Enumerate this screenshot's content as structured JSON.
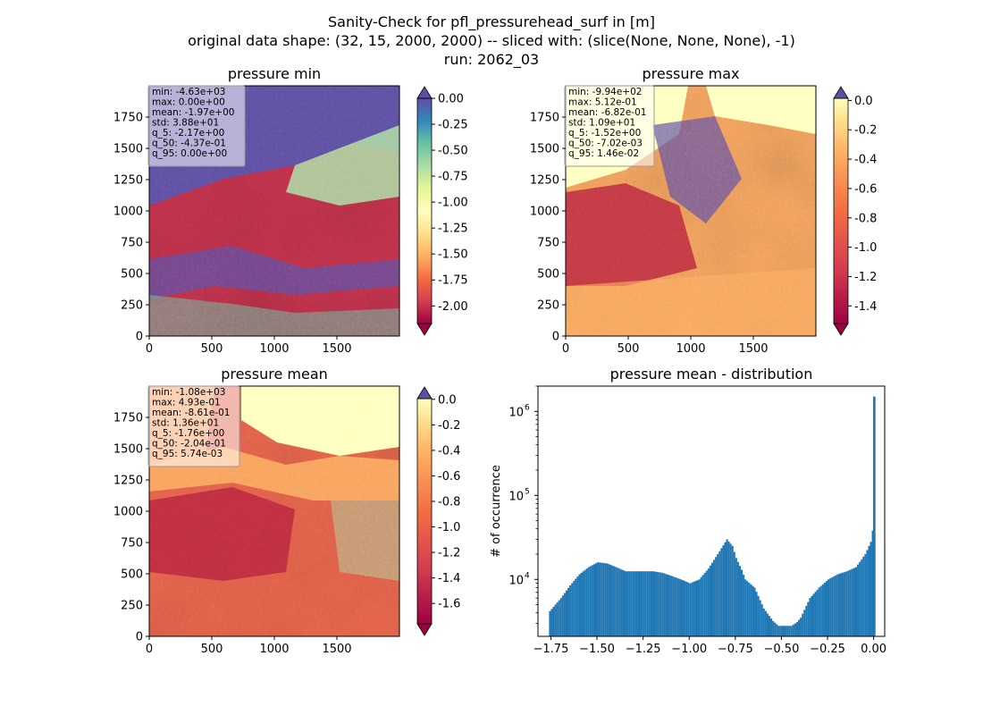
{
  "title_lines": [
    "Sanity-Check for pfl_pressurehead_surf in [m]",
    "original data shape: (32, 15, 2000, 2000) -- sliced with: (slice(None, None, None), -1)",
    "run: 2062_03"
  ],
  "chart_data": [
    {
      "type": "heatmap",
      "title": "pressure min",
      "cmap": "Spectral",
      "xlim": [
        0,
        2000
      ],
      "ylim": [
        0,
        2000
      ],
      "xticks": [
        0,
        500,
        1000,
        1500
      ],
      "yticks": [
        0,
        250,
        500,
        750,
        1000,
        1250,
        1500,
        1750
      ],
      "colorbar": {
        "range": [
          -2.17,
          0.0
        ],
        "ticks": [
          "0.00",
          "-0.25",
          "-0.50",
          "-0.75",
          "-1.00",
          "-1.25",
          "-1.50",
          "-1.75",
          "-2.00"
        ],
        "extend": "both"
      },
      "stats": [
        "min: -4.63e+03",
        "max: 0.00e+00",
        "mean: -1.97e+00",
        "std: 3.88e+01",
        "q_5: -2.17e+00",
        "q_50: -4.37e-01",
        "q_95: 0.00e+00"
      ]
    },
    {
      "type": "heatmap",
      "title": "pressure max",
      "cmap": "Spectral",
      "xlim": [
        0,
        2000
      ],
      "ylim": [
        0,
        2000
      ],
      "xticks": [
        0,
        500,
        1000,
        1500
      ],
      "yticks": [
        0,
        250,
        500,
        750,
        1000,
        1250,
        1500,
        1750
      ],
      "colorbar": {
        "range": [
          -1.52,
          0.0146
        ],
        "ticks": [
          "0.0",
          "-0.2",
          "-0.4",
          "-0.6",
          "-0.8",
          "-1.0",
          "-1.2",
          "-1.4"
        ],
        "extend": "both"
      },
      "stats": [
        "min: -9.94e+02",
        "max: 5.12e-01",
        "mean: -6.82e-01",
        "std: 1.09e+01",
        "q_5: -1.52e+00",
        "q_50: -7.02e-03",
        "q_95: 1.46e-02"
      ]
    },
    {
      "type": "heatmap",
      "title": "pressure mean",
      "cmap": "Spectral",
      "xlim": [
        0,
        2000
      ],
      "ylim": [
        0,
        2000
      ],
      "xticks": [
        0,
        500,
        1000,
        1500
      ],
      "yticks": [
        0,
        250,
        500,
        750,
        1000,
        1250,
        1500,
        1750
      ],
      "colorbar": {
        "range": [
          -1.76,
          0.00574
        ],
        "ticks": [
          "0.0",
          "-0.2",
          "-0.4",
          "-0.6",
          "-0.8",
          "-1.0",
          "-1.2",
          "-1.4",
          "-1.6"
        ],
        "extend": "both"
      },
      "stats": [
        "min: -1.08e+03",
        "max: 4.93e-01",
        "mean: -8.61e-01",
        "std: 1.36e+01",
        "q_5: -1.76e+00",
        "q_50: -2.04e-01",
        "q_95: 5.74e-03"
      ]
    },
    {
      "type": "bar",
      "title": "pressure mean - distribution",
      "ylabel": "# of occurrence",
      "yscale": "log",
      "xlim": [
        -1.82,
        0.06
      ],
      "ylim": [
        2100,
        2000000
      ],
      "xticks": [
        "-1.75",
        "-1.50",
        "-1.25",
        "-1.00",
        "-0.75",
        "-0.50",
        "-0.25",
        "0.00"
      ],
      "yticks": [
        "10",
        "10",
        "10"
      ],
      "ytick_exponents": [
        "4",
        "5",
        "6"
      ],
      "color": "#1f77b4",
      "x": [
        -1.76,
        -1.7,
        -1.65,
        -1.6,
        -1.55,
        -1.5,
        -1.45,
        -1.4,
        -1.35,
        -1.3,
        -1.25,
        -1.2,
        -1.15,
        -1.1,
        -1.05,
        -1.0,
        -0.95,
        -0.9,
        -0.85,
        -0.8,
        -0.77,
        -0.75,
        -0.72,
        -0.7,
        -0.65,
        -0.6,
        -0.55,
        -0.52,
        -0.5,
        -0.45,
        -0.42,
        -0.4,
        -0.35,
        -0.3,
        -0.25,
        -0.2,
        -0.15,
        -0.1,
        -0.05,
        -0.02,
        -0.01,
        0.0
      ],
      "values": [
        4200,
        6000,
        8500,
        11500,
        14000,
        16000,
        15500,
        14000,
        12500,
        12500,
        12500,
        12500,
        12000,
        11000,
        10000,
        9000,
        10000,
        13500,
        20000,
        30000,
        25000,
        18000,
        13000,
        10000,
        8000,
        4500,
        3200,
        2800,
        2800,
        2800,
        3100,
        3500,
        6000,
        8000,
        10000,
        11500,
        12500,
        14000,
        20000,
        28000,
        38000,
        1500000
      ]
    }
  ]
}
